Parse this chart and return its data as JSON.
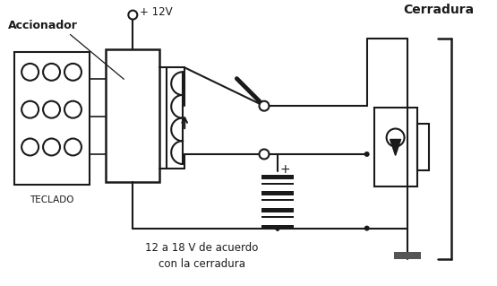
{
  "bg_color": "#ffffff",
  "lc": "#1a1a1a",
  "label_accionador": "Accionador",
  "label_teclado": "TECLADO",
  "label_cerradura": "Cerradura",
  "label_voltage": "+ 12V",
  "label_battery": "12 a 18 V de acuerdo\ncon la cerradura"
}
